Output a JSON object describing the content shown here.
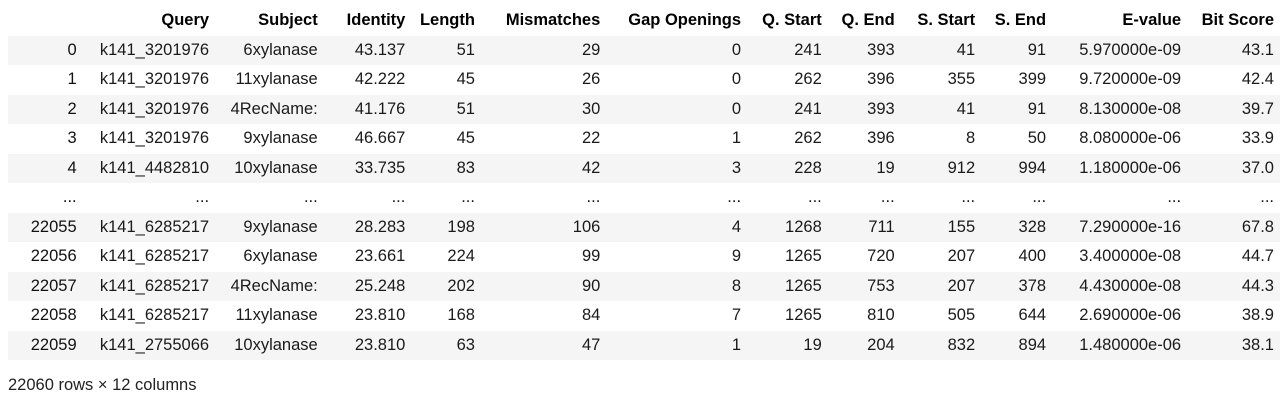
{
  "table": {
    "columns": [
      "Query",
      "Subject",
      "Identity",
      "Length",
      "Mismatches",
      "Gap Openings",
      "Q. Start",
      "Q. End",
      "S. Start",
      "S. End",
      "E-value",
      "Bit Score"
    ],
    "rows": [
      {
        "index": "0",
        "cells": [
          "k141_3201976",
          "6xylanase",
          "43.137",
          "51",
          "29",
          "0",
          "241",
          "393",
          "41",
          "91",
          "5.970000e-09",
          "43.1"
        ]
      },
      {
        "index": "1",
        "cells": [
          "k141_3201976",
          "11xylanase",
          "42.222",
          "45",
          "26",
          "0",
          "262",
          "396",
          "355",
          "399",
          "9.720000e-09",
          "42.4"
        ]
      },
      {
        "index": "2",
        "cells": [
          "k141_3201976",
          "4RecName:",
          "41.176",
          "51",
          "30",
          "0",
          "241",
          "393",
          "41",
          "91",
          "8.130000e-08",
          "39.7"
        ]
      },
      {
        "index": "3",
        "cells": [
          "k141_3201976",
          "9xylanase",
          "46.667",
          "45",
          "22",
          "1",
          "262",
          "396",
          "8",
          "50",
          "8.080000e-06",
          "33.9"
        ]
      },
      {
        "index": "4",
        "cells": [
          "k141_4482810",
          "10xylanase",
          "33.735",
          "83",
          "42",
          "3",
          "228",
          "19",
          "912",
          "994",
          "1.180000e-06",
          "37.0"
        ]
      },
      {
        "index": "...",
        "cells": [
          "...",
          "...",
          "...",
          "...",
          "...",
          "...",
          "...",
          "...",
          "...",
          "...",
          "...",
          "..."
        ]
      },
      {
        "index": "22055",
        "cells": [
          "k141_6285217",
          "9xylanase",
          "28.283",
          "198",
          "106",
          "4",
          "1268",
          "711",
          "155",
          "328",
          "7.290000e-16",
          "67.8"
        ]
      },
      {
        "index": "22056",
        "cells": [
          "k141_6285217",
          "6xylanase",
          "23.661",
          "224",
          "99",
          "9",
          "1265",
          "720",
          "207",
          "400",
          "3.400000e-08",
          "44.7"
        ]
      },
      {
        "index": "22057",
        "cells": [
          "k141_6285217",
          "4RecName:",
          "25.248",
          "202",
          "90",
          "8",
          "1265",
          "753",
          "207",
          "378",
          "4.430000e-08",
          "44.3"
        ]
      },
      {
        "index": "22058",
        "cells": [
          "k141_6285217",
          "11xylanase",
          "23.810",
          "168",
          "84",
          "7",
          "1265",
          "810",
          "505",
          "644",
          "2.690000e-06",
          "38.9"
        ]
      },
      {
        "index": "22059",
        "cells": [
          "k141_2755066",
          "10xylanase",
          "23.810",
          "63",
          "47",
          "1",
          "19",
          "204",
          "832",
          "894",
          "1.480000e-06",
          "38.1"
        ]
      }
    ]
  },
  "shape_text": "22060 rows × 12 columns"
}
